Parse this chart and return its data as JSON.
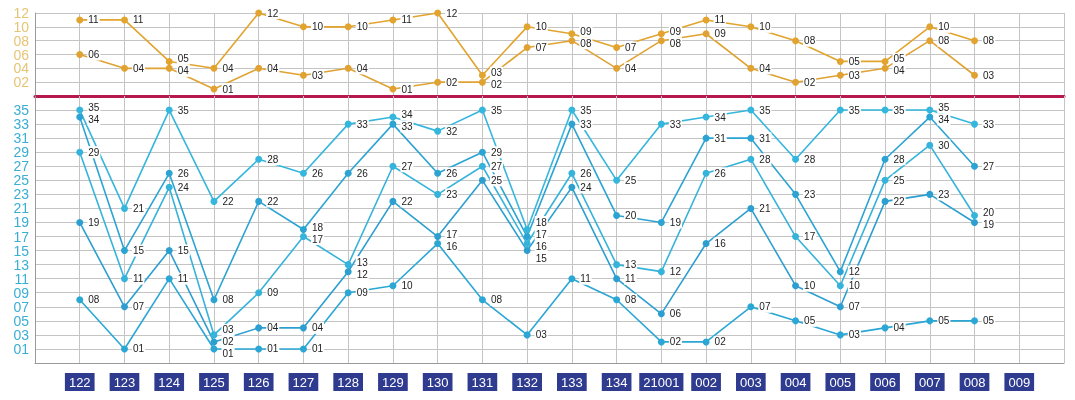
{
  "chart_data": [
    {
      "type": "line",
      "categories": [
        "122",
        "123",
        "124",
        "125",
        "126",
        "127",
        "128",
        "129",
        "130",
        "131",
        "132",
        "133",
        "134",
        "21001",
        "002",
        "003",
        "004",
        "005",
        "006",
        "007",
        "008",
        "009"
      ],
      "ylim": [
        0,
        12
      ],
      "yticks": [
        {
          "value": 2,
          "label": "02"
        },
        {
          "value": 4,
          "label": "04"
        },
        {
          "value": 6,
          "label": "06"
        },
        {
          "value": 8,
          "label": "08"
        },
        10,
        12
      ],
      "grid": true,
      "marker": "circle",
      "tick_labels": "y",
      "series": [
        {
          "color": "#e2a42e",
          "values": [
            11,
            11,
            5,
            4,
            12,
            10,
            10,
            11,
            12,
            3,
            10,
            9,
            7,
            9,
            11,
            10,
            8,
            5,
            5,
            10,
            8,
            null
          ],
          "value_labels": [
            "11",
            "11",
            "05",
            "04",
            "12",
            "10",
            "10",
            "11",
            "12",
            "03",
            "10",
            "09",
            "07",
            "09",
            "11",
            "10",
            "08",
            "05",
            "05",
            "10",
            "08",
            null
          ]
        },
        {
          "color": "#e0a232",
          "values": [
            6,
            4,
            4,
            1,
            4,
            3,
            4,
            1,
            2,
            2,
            7,
            8,
            4,
            8,
            9,
            4,
            2,
            3,
            4,
            8,
            3,
            null
          ],
          "value_labels": [
            "06",
            "04",
            "04",
            "01",
            "04",
            "03",
            "04",
            "01",
            "02",
            "02",
            "07",
            "08",
            "04",
            "08",
            "09",
            "04",
            "02",
            "03",
            "04",
            "08",
            "03",
            null
          ]
        }
      ]
    },
    {
      "type": "line",
      "categories": [
        "122",
        "123",
        "124",
        "125",
        "126",
        "127",
        "128",
        "129",
        "130",
        "131",
        "132",
        "133",
        "134",
        "21001",
        "002",
        "003",
        "004",
        "005",
        "006",
        "007",
        "008",
        "009"
      ],
      "ylim": [
        -1,
        37
      ],
      "yticks": [
        {
          "value": 1,
          "label": "01"
        },
        {
          "value": 3,
          "label": "03"
        },
        {
          "value": 5,
          "label": "05"
        },
        {
          "value": 7,
          "label": "07"
        },
        {
          "value": 9,
          "label": "09"
        },
        11,
        13,
        15,
        17,
        19,
        21,
        23,
        25,
        27,
        29,
        31,
        33,
        35
      ],
      "grid": true,
      "marker": "circle",
      "series": [
        {
          "color": "#2aa7d5",
          "values": [
            8,
            1,
            11,
            1,
            1,
            1,
            9,
            10,
            16,
            8,
            3,
            11,
            8,
            2,
            2,
            7,
            5,
            3,
            4,
            5,
            5,
            null
          ],
          "value_labels": [
            "08",
            "01",
            "11",
            "01",
            "01",
            "01",
            "09",
            "10",
            "16",
            "08",
            "03",
            "11",
            "08",
            "02",
            "02",
            "07",
            "05",
            "03",
            "04",
            "05",
            "05",
            null
          ]
        },
        {
          "color": "#2c9fd0",
          "values": [
            19,
            7,
            15,
            2,
            4,
            4,
            12,
            22,
            17,
            25,
            15,
            24,
            11,
            6,
            16,
            21,
            10,
            7,
            22,
            23,
            19,
            null
          ],
          "value_labels": [
            "19",
            "07",
            "15",
            "02",
            "04",
            "04",
            "12",
            "22",
            "17",
            "25",
            "15",
            "24",
            "11",
            "06",
            "16",
            "21",
            "10",
            "07",
            "22",
            "23",
            "19",
            null
          ]
        },
        {
          "color": "#36b3da",
          "values": [
            29,
            11,
            24,
            3,
            9,
            17,
            13,
            27,
            23,
            27,
            16,
            26,
            13,
            12,
            26,
            28,
            17,
            10,
            25,
            30,
            20,
            null
          ],
          "value_labels": [
            "29",
            "11",
            "24",
            "03",
            "09",
            "17",
            "13",
            "27",
            "23",
            "27",
            "16",
            "26",
            "13",
            "12",
            "26",
            "28",
            "17",
            "10",
            "25",
            "30",
            "20",
            null
          ]
        },
        {
          "color": "#2ba4d3",
          "values": [
            34,
            15,
            26,
            8,
            22,
            18,
            26,
            33,
            26,
            29,
            17,
            33,
            20,
            19,
            31,
            31,
            23,
            12,
            28,
            34,
            27,
            null
          ],
          "value_labels": [
            "34",
            "15",
            "26",
            "08",
            "22",
            "18",
            "26",
            "33",
            "26",
            "29",
            "17",
            "33",
            "20",
            "19",
            "31",
            "31",
            "23",
            "12",
            "28",
            "34",
            "27",
            null
          ]
        },
        {
          "color": "#35b6dd",
          "values": [
            35,
            21,
            35,
            22,
            28,
            26,
            33,
            34,
            32,
            35,
            18,
            35,
            25,
            33,
            34,
            35,
            28,
            35,
            35,
            35,
            33,
            null
          ],
          "value_labels": [
            "35",
            "21",
            "35",
            "22",
            "28",
            "26",
            "33",
            "34",
            "32",
            "35",
            "18",
            "35",
            "25",
            "33",
            "34",
            "35",
            "28",
            "35",
            "35",
            "35",
            "33",
            null
          ]
        }
      ]
    }
  ]
}
